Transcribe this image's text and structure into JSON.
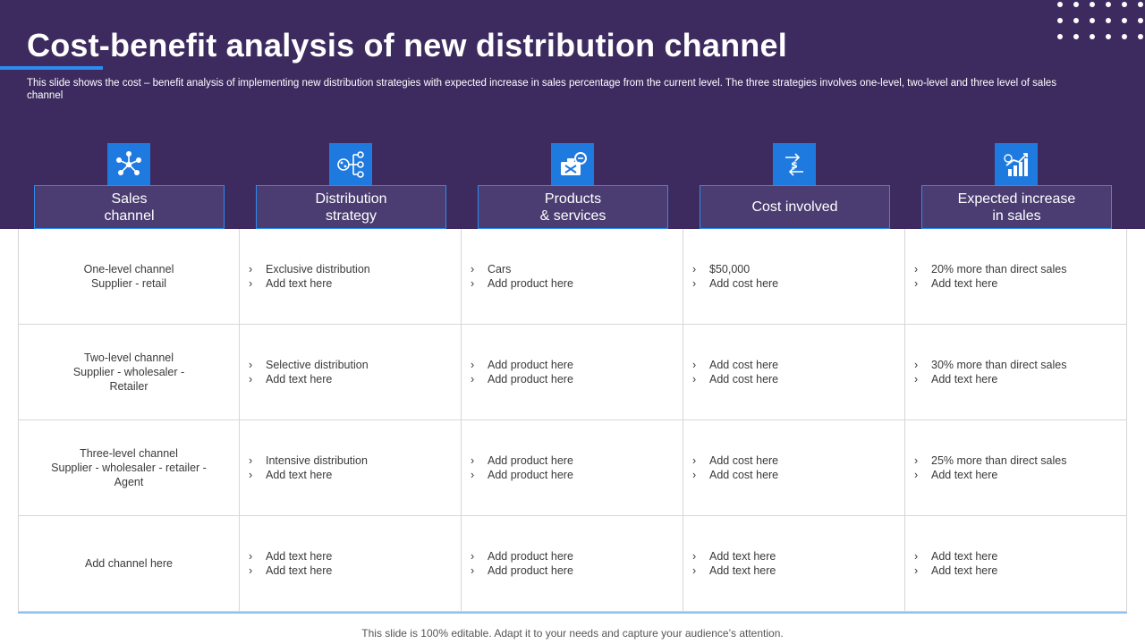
{
  "title": "Cost-benefit analysis of new distribution channel",
  "subtitle": "This slide shows the cost – benefit analysis of implementing new distribution strategies with expected increase in sales percentage from the current level.  The three strategies involves one-level, two-level and three level of sales channel",
  "colors": {
    "band": "#3d2b5f",
    "accent": "#2d8cf0",
    "icon_tile": "#1f7ae0",
    "header_box": "#4b3d72"
  },
  "headers": [
    {
      "label": "Sales\nchannel",
      "icon": "network-icon"
    },
    {
      "label": "Distribution\nstrategy",
      "icon": "flowchart-icon"
    },
    {
      "label": "Products\n& services",
      "icon": "toolbox-icon"
    },
    {
      "label": "Cost involved",
      "icon": "dollar-hand-icon"
    },
    {
      "label": "Expected increase\nin sales",
      "icon": "growth-chart-icon"
    }
  ],
  "rows": [
    {
      "channel": "One-level  channel\nSupplier - retail",
      "strategy": [
        "Exclusive distribution",
        "Add text here"
      ],
      "products": [
        "Cars",
        "Add product here"
      ],
      "cost": [
        "$50,000",
        "Add cost here"
      ],
      "increase": [
        "20% more than direct sales",
        "Add text here"
      ]
    },
    {
      "channel": "Two-level  channel\nSupplier  - wholesaler  -\nRetailer",
      "strategy": [
        "Selective distribution",
        "Add text here"
      ],
      "products": [
        "Add product here",
        "Add product here"
      ],
      "cost": [
        "Add cost here",
        "Add cost here"
      ],
      "increase": [
        "30% more than direct sales",
        "Add text here"
      ]
    },
    {
      "channel": "Three-level  channel\nSupplier  - wholesaler  -      retailer  -\nAgent",
      "strategy": [
        "Intensive distribution",
        "Add text here"
      ],
      "products": [
        "Add product here",
        "Add product here"
      ],
      "cost": [
        "Add cost here",
        "Add cost here"
      ],
      "increase": [
        "25% more than direct sales",
        "Add text here"
      ]
    },
    {
      "channel": "Add channel here",
      "strategy": [
        "Add text here",
        "Add text here"
      ],
      "products": [
        "Add product here",
        "Add product here"
      ],
      "cost": [
        "Add text here",
        "Add text here"
      ],
      "increase": [
        "Add text here",
        "Add text here"
      ]
    }
  ],
  "bullet_glyph": "›",
  "footer": "This slide is 100% editable. Adapt it to your needs and capture your audience’s attention."
}
